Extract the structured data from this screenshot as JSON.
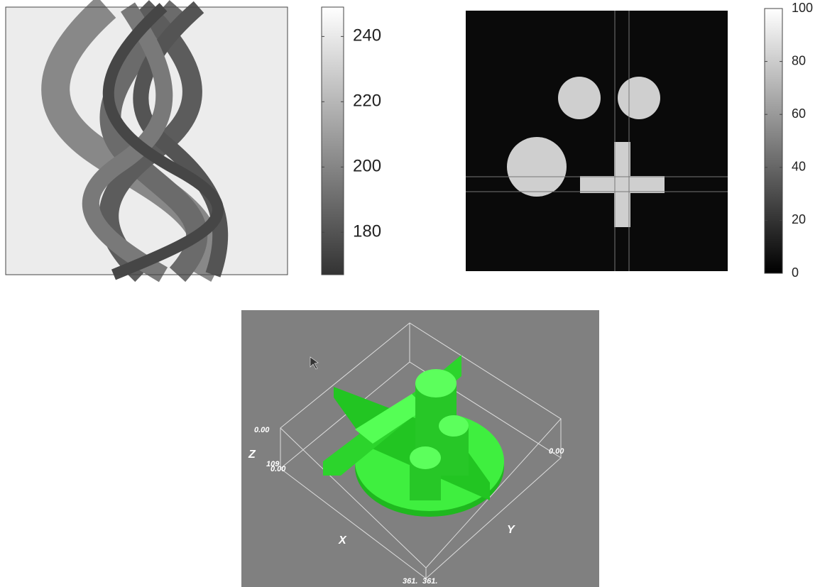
{
  "sinogram": {
    "colorbar": {
      "lim": [
        167,
        249
      ],
      "ticks": [
        180,
        200,
        220,
        240
      ]
    }
  },
  "reconstruction": {
    "colorbar": {
      "lim": [
        0,
        100
      ],
      "ticks": [
        0,
        20,
        40,
        60,
        80,
        100
      ]
    }
  },
  "render": {
    "z_top": "0.00",
    "z_axis": "Z",
    "z_bottom": "109",
    "x_start": "0.00",
    "y_start": "0.00",
    "x_axis": "X",
    "y_axis": "Y",
    "x_end": "361.",
    "y_end": "361."
  }
}
